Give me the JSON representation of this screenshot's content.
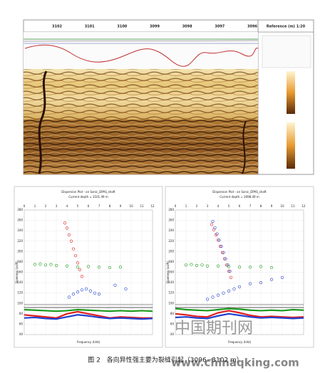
{
  "header": {
    "depth_ticks": [
      3102,
      3101,
      3100,
      3099,
      3098,
      3097,
      3096
    ],
    "reference": "Reference (m) 1:20"
  },
  "dispersion_plots": [
    {
      "title": "Dispersion Plot - on Sonic_DPAS_shaft",
      "subtitle": "Current depth = 3101.49 m",
      "x_label": "Frequency (kHz)",
      "y_label": "Slowness (us/ft)",
      "xlim": [
        0,
        12
      ],
      "xticks": [
        0,
        1,
        2,
        3,
        4,
        5,
        6,
        7,
        8,
        9,
        10,
        11,
        12
      ],
      "ylim": [
        40,
        280
      ],
      "yticks": [
        40,
        60,
        80,
        100,
        120,
        140,
        160,
        180,
        200,
        220,
        240,
        260,
        280
      ],
      "series": [
        {
          "color": "#e02020",
          "mode": "points",
          "x": [
            3.8,
            4.0,
            4.2,
            4.4,
            4.6,
            4.8,
            5.0,
            5.2,
            5.4
          ],
          "values": [
            255,
            245,
            232,
            220,
            205,
            192,
            178,
            165,
            152
          ]
        },
        {
          "color": "#2040d0",
          "mode": "points",
          "x": [
            4.2,
            4.6,
            5.0,
            5.4,
            5.8,
            6.2,
            6.6,
            7.0,
            8.5,
            9.5
          ],
          "values": [
            112,
            118,
            122,
            126,
            128,
            124,
            120,
            118,
            135,
            128
          ]
        },
        {
          "color": "#1a9a1a",
          "mode": "points",
          "x": [
            1,
            1.5,
            2,
            2.5,
            3,
            4,
            5,
            6,
            7,
            8,
            9
          ],
          "values": [
            175,
            176,
            174,
            175,
            173,
            172,
            170,
            171,
            170,
            169,
            170
          ]
        },
        {
          "color": "#1a9a1a",
          "mode": "line",
          "x": [
            0,
            1,
            2,
            3,
            4,
            5,
            6,
            7,
            8,
            9,
            10,
            11,
            12
          ],
          "values": [
            88,
            87,
            86,
            85,
            86,
            88,
            87,
            86,
            85,
            86,
            85,
            86,
            85
          ]
        },
        {
          "color": "#e02020",
          "mode": "line",
          "x": [
            0,
            1,
            2,
            3,
            4,
            5,
            6,
            7,
            8,
            9,
            10,
            11,
            12
          ],
          "values": [
            78,
            76,
            74,
            72,
            80,
            84,
            80,
            76,
            72,
            74,
            73,
            72,
            72
          ]
        },
        {
          "color": "#2040d0",
          "mode": "line",
          "x": [
            0,
            1,
            2,
            3,
            4,
            5,
            6,
            7,
            8,
            9,
            10,
            11,
            12
          ],
          "values": [
            72,
            73,
            71,
            70,
            74,
            78,
            76,
            73,
            71,
            72,
            71,
            70,
            71
          ]
        }
      ]
    },
    {
      "title": "Dispersion Plot - on Sonic_DPAS_shaft",
      "subtitle": "Current depth = 3098.49 m",
      "x_label": "Frequency (kHz)",
      "y_label": "Slowness (us/ft)",
      "xlim": [
        0,
        12
      ],
      "xticks": [
        0,
        1,
        2,
        3,
        4,
        5,
        6,
        7,
        8,
        9,
        10,
        11,
        12
      ],
      "ylim": [
        40,
        280
      ],
      "yticks": [
        40,
        60,
        80,
        100,
        120,
        140,
        160,
        180,
        200,
        220,
        240,
        260,
        280
      ],
      "series": [
        {
          "color": "#e02020",
          "mode": "points",
          "x": [
            3.4,
            3.6,
            3.8,
            4.0,
            4.2,
            4.4,
            4.6,
            4.8,
            5.0,
            5.2
          ],
          "values": [
            252,
            242,
            232,
            222,
            210,
            198,
            186,
            174,
            162,
            150
          ]
        },
        {
          "color": "#2040d0",
          "mode": "points",
          "x": [
            3.5,
            3.7,
            3.9,
            4.1,
            4.3,
            4.5,
            4.7,
            4.9,
            5.1
          ],
          "values": [
            258,
            246,
            234,
            222,
            210,
            198,
            186,
            174,
            162
          ]
        },
        {
          "color": "#2040d0",
          "mode": "points",
          "x": [
            3.0,
            3.5,
            4.0,
            4.5,
            5.0,
            5.5,
            6.0,
            7.0,
            8.0,
            9.0,
            10.0
          ],
          "values": [
            108,
            112,
            116,
            120,
            124,
            128,
            132,
            138,
            140,
            146,
            150
          ]
        },
        {
          "color": "#1a9a1a",
          "mode": "points",
          "x": [
            1,
            1.5,
            2,
            2.5,
            3,
            4,
            5,
            6,
            7,
            8,
            9
          ],
          "values": [
            174,
            175,
            173,
            174,
            172,
            172,
            171,
            170,
            170,
            171,
            169
          ]
        },
        {
          "color": "#1a9a1a",
          "mode": "line",
          "x": [
            0,
            1,
            2,
            3,
            4,
            5,
            6,
            7,
            8,
            9,
            10,
            11,
            12
          ],
          "values": [
            90,
            88,
            87,
            86,
            88,
            90,
            89,
            87,
            86,
            87,
            86,
            88,
            87
          ]
        },
        {
          "color": "#e02020",
          "mode": "line",
          "x": [
            0,
            1,
            2,
            3,
            4,
            5,
            6,
            7,
            8,
            9,
            10,
            11,
            12
          ],
          "values": [
            80,
            78,
            75,
            74,
            82,
            86,
            82,
            77,
            74,
            75,
            74,
            73,
            74
          ]
        },
        {
          "color": "#2040d0",
          "mode": "line",
          "x": [
            0,
            1,
            2,
            3,
            4,
            5,
            6,
            7,
            8,
            9,
            10,
            11,
            12
          ],
          "values": [
            73,
            74,
            72,
            71,
            76,
            80,
            77,
            74,
            72,
            73,
            72,
            71,
            72
          ]
        }
      ]
    }
  ],
  "caption": "图 2　各向异性强主要为裂缝引起（3096~3102 m）",
  "watermark": "中国期刊网",
  "url": "www.chinaqking.com"
}
